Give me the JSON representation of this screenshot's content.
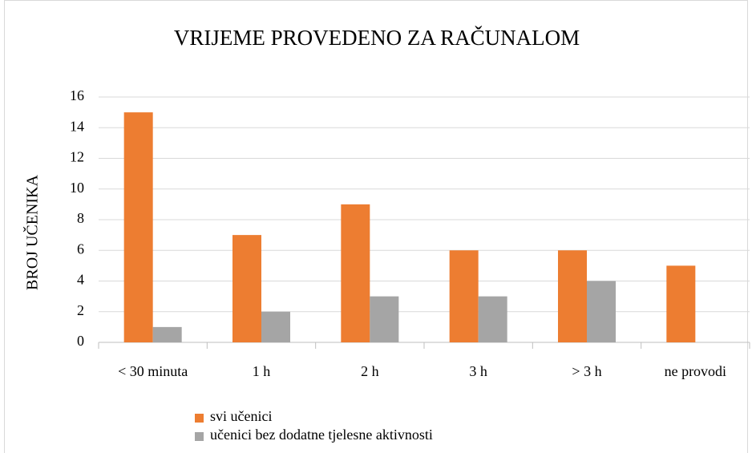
{
  "chart_data": {
    "type": "bar",
    "title": "VRIJEME PROVEDENO ZA RAČUNALOM",
    "y_label": "BROJ UČENIKA",
    "categories": [
      "< 30 minuta",
      "1 h",
      "2 h",
      "3 h",
      "> 3 h",
      "ne provodi"
    ],
    "series": [
      {
        "name": "svi učenici",
        "color": "#ed7d31",
        "values": [
          15,
          7,
          9,
          6,
          6,
          5
        ]
      },
      {
        "name": "učenici bez dodatne tjelesne aktivnosti",
        "color": "#a5a5a5",
        "values": [
          1,
          2,
          3,
          3,
          4,
          0
        ]
      }
    ],
    "ylim": [
      0,
      16
    ],
    "yticks": [
      0,
      2,
      4,
      6,
      8,
      10,
      12,
      14,
      16
    ],
    "grid": true,
    "legend": "bottom-left"
  }
}
